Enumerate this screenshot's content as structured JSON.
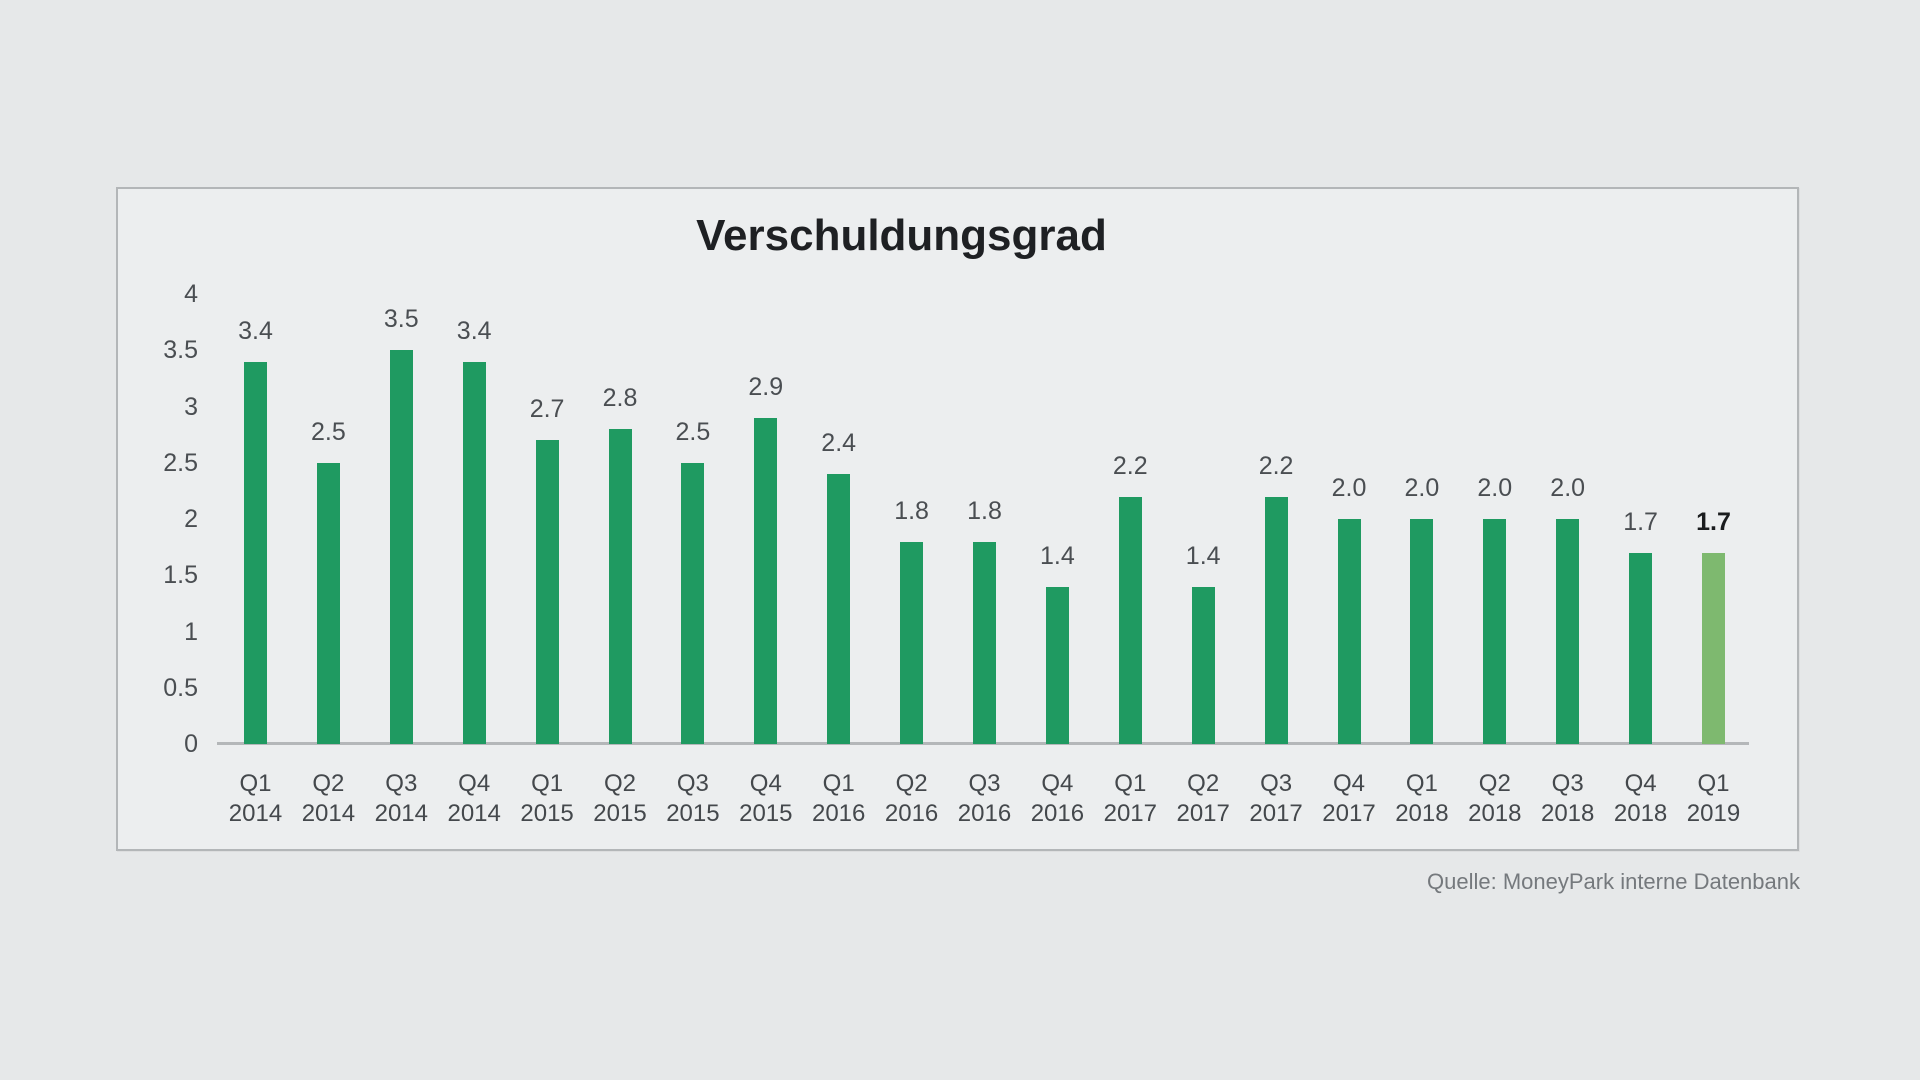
{
  "page": {
    "background_color": "#e6e8e9",
    "panel_border_color": "#b3b6b8",
    "panel_background_color": "#eceeef"
  },
  "chart_data": {
    "type": "bar",
    "title": "Verschuldungsgrad",
    "categories": [
      "Q1 2014",
      "Q2 2014",
      "Q3 2014",
      "Q4 2014",
      "Q1 2015",
      "Q2 2015",
      "Q3 2015",
      "Q4 2015",
      "Q1 2016",
      "Q2 2016",
      "Q3 2016",
      "Q4 2016",
      "Q1 2017",
      "Q2 2017",
      "Q3 2017",
      "Q4 2017",
      "Q1 2018",
      "Q2 2018",
      "Q3 2018",
      "Q4 2018",
      "Q1 2019"
    ],
    "values": [
      3.4,
      2.5,
      3.5,
      3.4,
      2.7,
      2.8,
      2.5,
      2.9,
      2.4,
      1.8,
      1.8,
      1.4,
      2.2,
      1.4,
      2.2,
      2.0,
      2.0,
      2.0,
      2.0,
      1.7,
      1.7
    ],
    "bar_labels": [
      "3.4",
      "2.5",
      "3.5",
      "3.4",
      "2.7",
      "2.8",
      "2.5",
      "2.9",
      "2.4",
      "1.8",
      "1.8",
      "1.4",
      "2.2",
      "1.4",
      "2.2",
      "2.0",
      "2.0",
      "2.0",
      "2.0",
      "1.7",
      "1.7"
    ],
    "xlabel": "",
    "ylabel": "",
    "ylim": [
      0,
      4
    ],
    "yticks": [
      "4",
      "3.5",
      "3",
      "2.5",
      "2",
      "1.5",
      "1",
      "0.5",
      "0"
    ],
    "grid": false,
    "legend_position": "none",
    "highlight_index": 20,
    "bar_color": "#1f9a61",
    "highlight_bar_color": "#7eb96f",
    "source": "Quelle: MoneyPark interne Datenbank"
  }
}
